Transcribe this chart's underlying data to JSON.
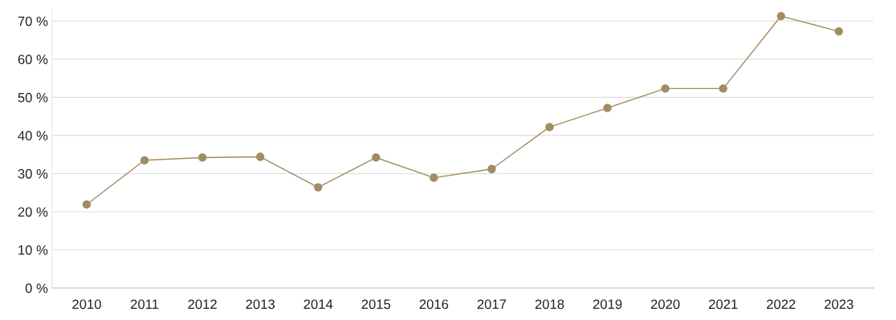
{
  "chart_data": {
    "type": "line",
    "categories": [
      "2010",
      "2011",
      "2012",
      "2013",
      "2014",
      "2015",
      "2016",
      "2017",
      "2018",
      "2019",
      "2020",
      "2021",
      "2022",
      "2023"
    ],
    "series": [
      {
        "color": "#a38b62",
        "values": [
          21.9,
          33.5,
          34.2,
          34.4,
          26.4,
          34.2,
          28.9,
          31.2,
          42.2,
          47.2,
          52.3,
          52.3,
          71.3,
          67.3
        ]
      }
    ],
    "ylim": [
      0,
      73
    ],
    "yticks": [
      {
        "value": 0,
        "label": "0 %"
      },
      {
        "value": 10,
        "label": "10 %"
      },
      {
        "value": 20,
        "label": "20 %"
      },
      {
        "value": 30,
        "label": "30 %"
      },
      {
        "value": 40,
        "label": "40 %"
      },
      {
        "value": 50,
        "label": "50 %"
      },
      {
        "value": 60,
        "label": "60 %"
      },
      {
        "value": 70,
        "label": "70 %"
      }
    ],
    "grid": "y",
    "marker": "circle",
    "line_style": "solid",
    "legend": false
  }
}
